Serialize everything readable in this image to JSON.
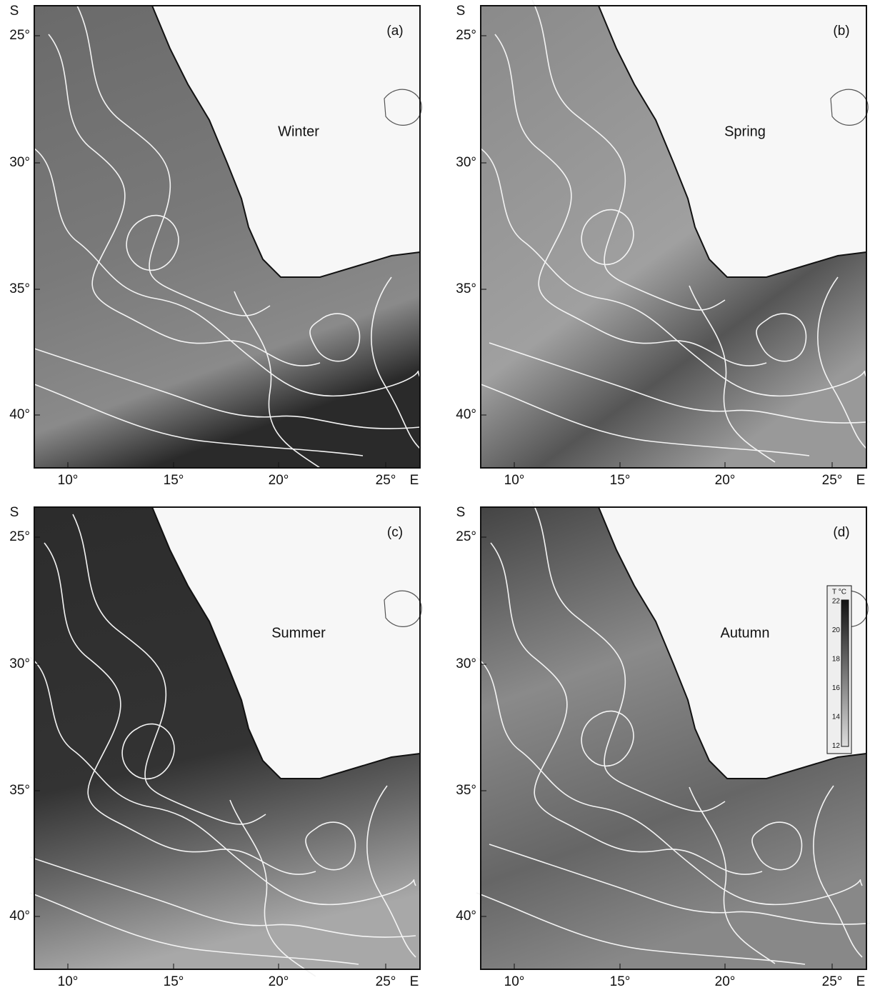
{
  "panels": [
    {
      "label": "(a)",
      "season": "Winter",
      "y_axis": {
        "unit": "S",
        "ticks": [
          "25°",
          "30°",
          "35°",
          "40°"
        ]
      },
      "x_axis": {
        "ticks": [
          "10°",
          "15°",
          "20°",
          "25°"
        ],
        "unit": "E"
      }
    },
    {
      "label": "(b)",
      "season": "Spring",
      "y_axis": {
        "unit": "S",
        "ticks": [
          "25°",
          "30°",
          "35°",
          "40°"
        ]
      },
      "x_axis": {
        "ticks": [
          "10°",
          "15°",
          "20°",
          "25°"
        ],
        "unit": "E"
      }
    },
    {
      "label": "(c)",
      "season": "Summer",
      "y_axis": {
        "unit": "S",
        "ticks": [
          "25°",
          "30°",
          "35°",
          "40°"
        ]
      },
      "x_axis": {
        "ticks": [
          "10°",
          "15°",
          "20°",
          "25°"
        ],
        "unit": "E"
      }
    },
    {
      "label": "(d)",
      "season": "Autumn",
      "y_axis": {
        "unit": "S",
        "ticks": [
          "25°",
          "30°",
          "35°",
          "40°"
        ]
      },
      "x_axis": {
        "ticks": [
          "10°",
          "15°",
          "20°",
          "25°"
        ],
        "unit": "E"
      }
    }
  ],
  "colorbar": {
    "title": "T °C",
    "ticks": [
      "22",
      "20",
      "18",
      "16",
      "14",
      "12"
    ]
  }
}
